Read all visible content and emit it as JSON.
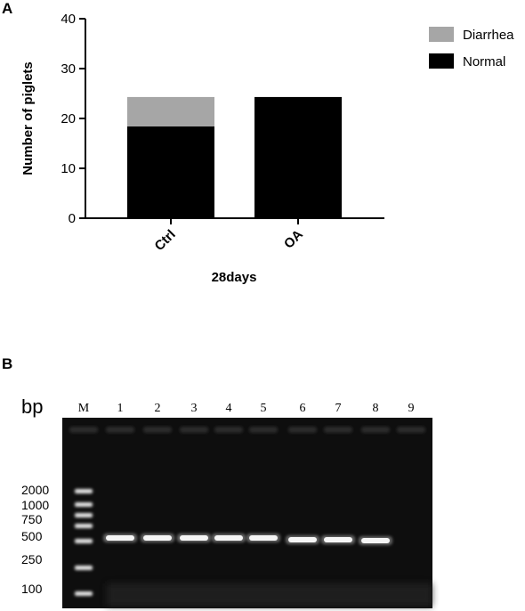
{
  "panels": {
    "a": "A",
    "b": "B"
  },
  "chart_data": {
    "type": "bar",
    "stacked": true,
    "categories": [
      "Ctrl",
      "OA"
    ],
    "series": [
      {
        "name": "Normal",
        "values": [
          18.4,
          24.3
        ],
        "color": "#000000"
      },
      {
        "name": "Diarrhea",
        "values": [
          5.9,
          0
        ],
        "color": "#a6a6a6"
      }
    ],
    "xlabel": "28days",
    "ylabel": "Number of piglets",
    "ylim": [
      0,
      40
    ],
    "yticks": [
      0,
      10,
      20,
      30,
      40
    ],
    "legend": "top-right",
    "grid": false
  },
  "gel": {
    "unit_label": "bp",
    "marker_label": "M",
    "lanes": [
      "1",
      "2",
      "3",
      "4",
      "5",
      "6",
      "7",
      "8",
      "9"
    ],
    "marker_sizes": [
      "2000",
      "1000",
      "750",
      "500",
      "250",
      "100"
    ],
    "lanes_with_band": [
      true,
      true,
      true,
      true,
      true,
      true,
      true,
      true,
      false
    ],
    "colors": {
      "background": "#0e0e0e",
      "band": "#f5f5f5"
    }
  }
}
